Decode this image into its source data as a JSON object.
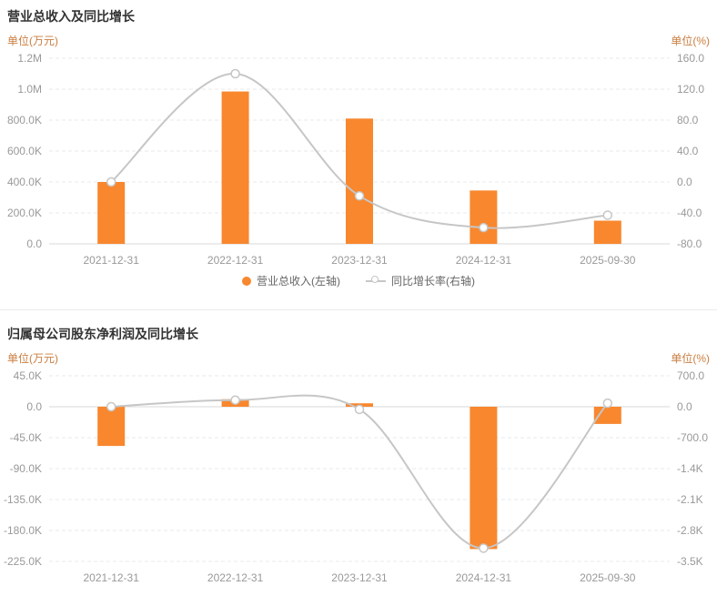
{
  "colors": {
    "bar": "#f8872e",
    "line": "#c6c6c6",
    "grid": "#e8e8e8",
    "axis_text": "#999999",
    "unit_text": "#c97e3f",
    "title_text": "#333333",
    "legend_text": "#666666"
  },
  "chart_data": [
    {
      "type": "bar",
      "subtype": "bar-line-combo",
      "title": "营业总收入及同比增长",
      "unit_left": "单位(万元)",
      "unit_right": "单位(%)",
      "categories": [
        "2021-12-31",
        "2022-12-31",
        "2023-12-31",
        "2024-12-31",
        "2025-09-30"
      ],
      "left_axis": {
        "min": 0,
        "max": 1200000,
        "ticks": [
          {
            "value": 1200000,
            "label": "1.2M"
          },
          {
            "value": 1000000,
            "label": "1.0M"
          },
          {
            "value": 800000,
            "label": "800.0K"
          },
          {
            "value": 600000,
            "label": "600.0K"
          },
          {
            "value": 400000,
            "label": "400.0K"
          },
          {
            "value": 200000,
            "label": "200.0K"
          },
          {
            "value": 0,
            "label": "0.0"
          }
        ]
      },
      "right_axis": {
        "min": -80,
        "max": 160,
        "ticks": [
          {
            "value": 160,
            "label": "160.0"
          },
          {
            "value": 120,
            "label": "120.0"
          },
          {
            "value": 80,
            "label": "80.0"
          },
          {
            "value": 40,
            "label": "40.0"
          },
          {
            "value": 0,
            "label": "0.0"
          },
          {
            "value": -40,
            "label": "-40.0"
          },
          {
            "value": -80,
            "label": "-80.0"
          }
        ]
      },
      "baseline": 0,
      "grid": "dashed",
      "legend_position": "bottom-center",
      "series": [
        {
          "name": "营业总收入(左轴)",
          "type": "bar",
          "axis": "left",
          "values": [
            400000,
            985000,
            810000,
            345000,
            150000
          ]
        },
        {
          "name": "同比增长率(右轴)",
          "type": "line",
          "axis": "right",
          "values": [
            0,
            140,
            -18,
            -59,
            -43
          ]
        }
      ],
      "legend": {
        "items": [
          "营业总收入(左轴)",
          "同比增长率(右轴)"
        ]
      }
    },
    {
      "type": "bar",
      "subtype": "bar-line-combo",
      "title": "归属母公司股东净利润及同比增长",
      "unit_left": "单位(万元)",
      "unit_right": "单位(%)",
      "categories": [
        "2021-12-31",
        "2022-12-31",
        "2023-12-31",
        "2024-12-31",
        "2025-09-30"
      ],
      "left_axis": {
        "min": -225000,
        "max": 45000,
        "ticks": [
          {
            "value": 45000,
            "label": "45.0K"
          },
          {
            "value": 0,
            "label": "0.0"
          },
          {
            "value": -45000,
            "label": "-45.0K"
          },
          {
            "value": -90000,
            "label": "-90.0K"
          },
          {
            "value": -135000,
            "label": "-135.0K"
          },
          {
            "value": -180000,
            "label": "-180.0K"
          },
          {
            "value": -225000,
            "label": "-225.0K"
          }
        ]
      },
      "right_axis": {
        "min": -3500,
        "max": 700,
        "ticks": [
          {
            "value": 700,
            "label": "700.0"
          },
          {
            "value": 0,
            "label": "0.0"
          },
          {
            "value": -700,
            "label": "-700.0"
          },
          {
            "value": -1400,
            "label": "-1.4K"
          },
          {
            "value": -2100,
            "label": "-2.1K"
          },
          {
            "value": -2800,
            "label": "-2.8K"
          },
          {
            "value": -3500,
            "label": "-3.5K"
          }
        ]
      },
      "baseline": 0,
      "grid": "dashed",
      "series": [
        {
          "type": "bar",
          "axis": "left",
          "values": [
            -57000,
            11000,
            5000,
            -207000,
            -25000
          ]
        },
        {
          "type": "line",
          "axis": "right",
          "values": [
            0,
            150,
            -60,
            -3200,
            80
          ]
        }
      ]
    }
  ]
}
